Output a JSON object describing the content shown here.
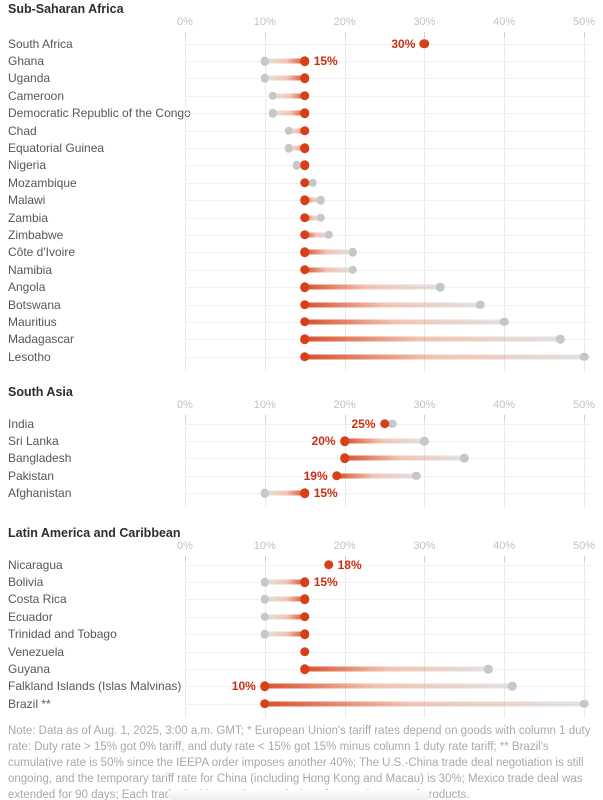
{
  "colors": {
    "new_rate_red": "#d63f17",
    "annotation_red": "#c92f12",
    "previous_rate_gray": "#c7c7c7",
    "gridline": "#eaeaea",
    "section_title": "#2d2d2d",
    "country_label": "#575757",
    "axis_label": "#c2c2c2",
    "note_text": "#a9a9a9"
  },
  "axis": {
    "tick_labels": [
      "0%",
      "10%",
      "20%",
      "30%",
      "40%",
      "50%"
    ],
    "tick_values": [
      0,
      10,
      20,
      30,
      40,
      50
    ],
    "max": 50
  },
  "chart_data": [
    {
      "type": "dumbbell",
      "title": "Sub-Saharan Africa",
      "x_ticks": [
        0,
        10,
        20,
        30,
        40,
        50
      ],
      "xlim": [
        0,
        52
      ],
      "unit": "%",
      "rows": [
        {
          "label": "South Africa",
          "red": 30,
          "gray": null,
          "annotation": "30%",
          "annotation_side": "left"
        },
        {
          "label": "Ghana",
          "red": 15,
          "gray": 10,
          "annotation": "15%",
          "annotation_side": "right"
        },
        {
          "label": "Uganda",
          "red": 15,
          "gray": 10
        },
        {
          "label": "Cameroon",
          "red": 15,
          "gray": 11
        },
        {
          "label": "Democratic Republic of the Congo",
          "red": 15,
          "gray": 11
        },
        {
          "label": "Chad",
          "red": 15,
          "gray": 13
        },
        {
          "label": "Equatorial Guinea",
          "red": 15,
          "gray": 13
        },
        {
          "label": "Nigeria",
          "red": 15,
          "gray": 14
        },
        {
          "label": "Mozambique",
          "red": 15,
          "gray": 16
        },
        {
          "label": "Malawi",
          "red": 15,
          "gray": 17
        },
        {
          "label": "Zambia",
          "red": 15,
          "gray": 17
        },
        {
          "label": "Zimbabwe",
          "red": 15,
          "gray": 18
        },
        {
          "label": "Côte d'Ivoire",
          "red": 15,
          "gray": 21
        },
        {
          "label": "Namibia",
          "red": 15,
          "gray": 21
        },
        {
          "label": "Angola",
          "red": 15,
          "gray": 32
        },
        {
          "label": "Botswana",
          "red": 15,
          "gray": 37
        },
        {
          "label": "Mauritius",
          "red": 15,
          "gray": 40
        },
        {
          "label": "Madagascar",
          "red": 15,
          "gray": 47
        },
        {
          "label": "Lesotho",
          "red": 15,
          "gray": 50
        }
      ]
    },
    {
      "type": "dumbbell",
      "title": "South Asia",
      "x_ticks": [
        0,
        10,
        20,
        30,
        40,
        50
      ],
      "xlim": [
        0,
        52
      ],
      "unit": "%",
      "rows": [
        {
          "label": "India",
          "red": 25,
          "gray": 26,
          "annotation": "25%",
          "annotation_side": "left"
        },
        {
          "label": "Sri Lanka",
          "red": 20,
          "gray": 30,
          "annotation": "20%",
          "annotation_side": "left"
        },
        {
          "label": "Bangladesh",
          "red": 20,
          "gray": 35
        },
        {
          "label": "Pakistan",
          "red": 19,
          "gray": 29,
          "annotation": "19%",
          "annotation_side": "left"
        },
        {
          "label": "Afghanistan",
          "red": 15,
          "gray": 10,
          "annotation": "15%",
          "annotation_side": "right"
        }
      ]
    },
    {
      "type": "dumbbell",
      "title": "Latin America and Caribbean",
      "x_ticks": [
        0,
        10,
        20,
        30,
        40,
        50
      ],
      "xlim": [
        0,
        52
      ],
      "unit": "%",
      "rows": [
        {
          "label": "Nicaragua",
          "red": 18,
          "gray": null,
          "annotation": "18%",
          "annotation_side": "right"
        },
        {
          "label": "Bolivia",
          "red": 15,
          "gray": 10,
          "annotation": "15%",
          "annotation_side": "right"
        },
        {
          "label": "Costa Rica",
          "red": 15,
          "gray": 10
        },
        {
          "label": "Ecuador",
          "red": 15,
          "gray": 10
        },
        {
          "label": "Trinidad and Tobago",
          "red": 15,
          "gray": 10
        },
        {
          "label": "Venezuela",
          "red": 15,
          "gray": null
        },
        {
          "label": "Guyana",
          "red": 15,
          "gray": 38
        },
        {
          "label": "Falkland Islands (Islas Malvinas)",
          "red": 10,
          "gray": 41,
          "annotation": "10%",
          "annotation_side": "left"
        },
        {
          "label": "Brazil **",
          "red": 10,
          "gray": 50
        }
      ]
    }
  ],
  "note": "Note: Data as of Aug. 1, 2025, 3:00 a.m. GMT; * European Union's tariff rates depend on goods with column 1 duty rate: Duty rate > 15% got 0% tariff, and duty rate < 15% got 15% minus column 1 duty rate tariff; ** Brazil's cumulative rate is 50% since the IEEPA order imposes another 40%; The U.S.-China trade deal negotiation is still ongoing, and the temporary tariff rate for China (including Hong Kong and Macau) is 30%; Mexico trade deal was extended for 90 days; Each trade deal has various exclusions for certain types of products."
}
